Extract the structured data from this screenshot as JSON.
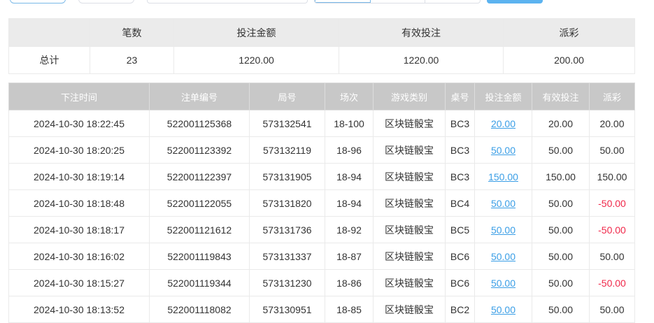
{
  "summary": {
    "headers": [
      "",
      "笔数",
      "投注金额",
      "有效投注",
      "派彩"
    ],
    "row": [
      "总计",
      "23",
      "1220.00",
      "1220.00",
      "200.00"
    ]
  },
  "detail": {
    "headers": [
      "下注时间",
      "注单编号",
      "局号",
      "场次",
      "游戏类别",
      "桌号",
      "投注金额",
      "有效投注",
      "派彩"
    ],
    "rows": [
      [
        "2024-10-30 18:22:45",
        "522001125368",
        "573132541",
        "18-100",
        "区块链骰宝",
        "BC3",
        "20.00",
        "20.00",
        "20.00"
      ],
      [
        "2024-10-30 18:20:25",
        "522001123392",
        "573132119",
        "18-96",
        "区块链骰宝",
        "BC3",
        "50.00",
        "50.00",
        "50.00"
      ],
      [
        "2024-10-30 18:19:14",
        "522001122397",
        "573131905",
        "18-94",
        "区块链骰宝",
        "BC3",
        "150.00",
        "150.00",
        "150.00"
      ],
      [
        "2024-10-30 18:18:48",
        "522001122055",
        "573131820",
        "18-94",
        "区块链骰宝",
        "BC4",
        "50.00",
        "50.00",
        "-50.00"
      ],
      [
        "2024-10-30 18:18:17",
        "522001121612",
        "573131736",
        "18-92",
        "区块链骰宝",
        "BC5",
        "50.00",
        "50.00",
        "-50.00"
      ],
      [
        "2024-10-30 18:16:02",
        "522001119843",
        "573131337",
        "18-87",
        "区块链骰宝",
        "BC6",
        "50.00",
        "50.00",
        "50.00"
      ],
      [
        "2024-10-30 18:15:27",
        "522001119344",
        "573131230",
        "18-86",
        "区块链骰宝",
        "BC6",
        "50.00",
        "50.00",
        "-50.00"
      ],
      [
        "2024-10-30 18:13:52",
        "522001118082",
        "573130951",
        "18-85",
        "区块链骰宝",
        "BC2",
        "50.00",
        "50.00",
        "50.00"
      ]
    ]
  },
  "colors": {
    "link": "#3a9ee6",
    "negative": "#f0284a",
    "header_bg": "#c8c8c8"
  }
}
